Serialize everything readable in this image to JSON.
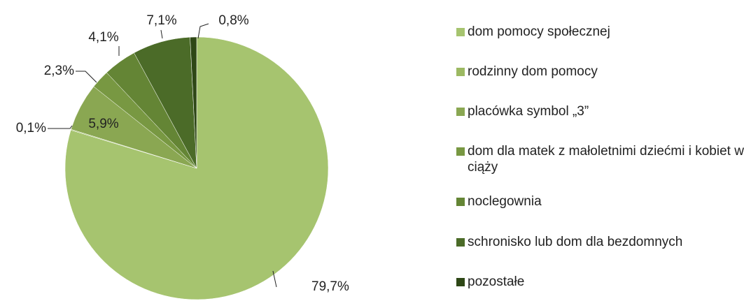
{
  "chart_data": {
    "type": "pie",
    "categories": [
      "dom pomocy społecznej",
      "rodzinny dom pomocy",
      "placówka symbol „3”",
      "dom dla matek z małoletnimi dziećmi i kobiet w ciąży",
      "noclegownia",
      "schronisko lub dom dla bezdomnych",
      "pozostałe"
    ],
    "values": [
      79.7,
      0.1,
      5.9,
      2.3,
      4.1,
      7.1,
      0.8
    ],
    "value_labels": [
      "79,7%",
      "0,1%",
      "5,9%",
      "2,3%",
      "4,1%",
      "7,1%",
      "0,8%"
    ],
    "colors": [
      "#a6c46f",
      "#9cb962",
      "#8aa752",
      "#789842",
      "#648535",
      "#4b6b28",
      "#2e4716"
    ],
    "legend": "right"
  }
}
